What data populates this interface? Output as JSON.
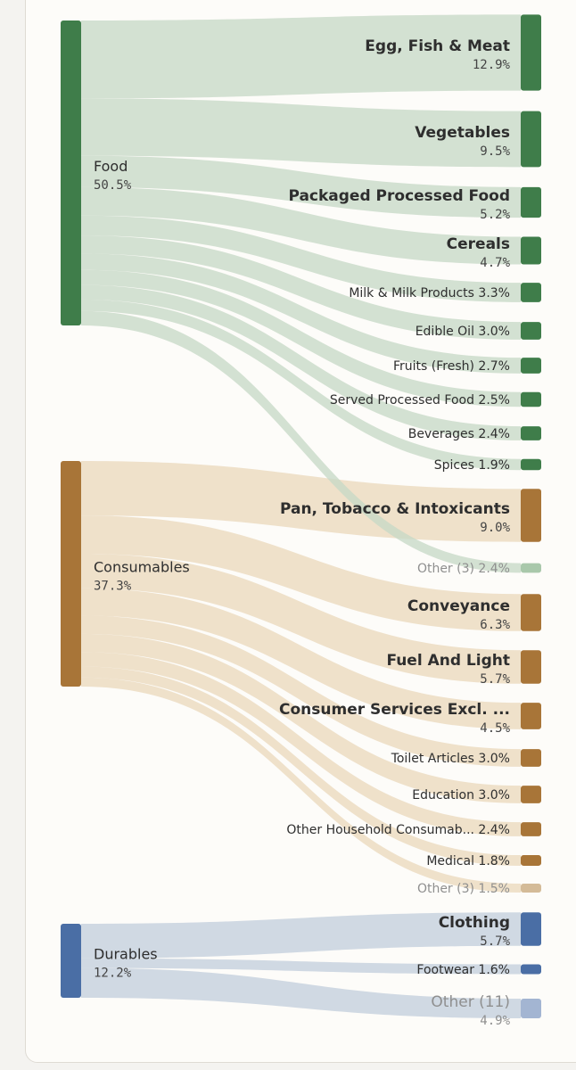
{
  "chart_data": {
    "type": "sankey",
    "value_format": "percent",
    "colors": {
      "Food": "#3f7d4a",
      "Consumables": "#a87538",
      "Durables": "#4a6ea5",
      "Food_link": "#c6d9c7",
      "Consumables_link": "#ead8bc",
      "Durables_link": "#c3cedd",
      "Food_other_node": "#a9c8ab",
      "Consumables_other_node": "#d4bb98",
      "Durables_other_node": "#a3b5d2"
    },
    "sources": [
      {
        "name": "Food",
        "value": "50.5%"
      },
      {
        "name": "Consumables",
        "value": "37.3%"
      },
      {
        "name": "Durables",
        "value": "12.2%"
      }
    ],
    "targets": [
      {
        "name": "Egg, Fish & Meat",
        "value": "12.9%",
        "num": 12.9,
        "source": "Food",
        "style": "large"
      },
      {
        "name": "Vegetables",
        "value": "9.5%",
        "num": 9.5,
        "source": "Food",
        "style": "large"
      },
      {
        "name": "Packaged Processed Food",
        "value": "5.2%",
        "num": 5.2,
        "source": "Food",
        "style": "large"
      },
      {
        "name": "Cereals",
        "value": "4.7%",
        "num": 4.7,
        "source": "Food",
        "style": "large"
      },
      {
        "name": "Milk & Milk Products",
        "value": "3.3%",
        "num": 3.3,
        "source": "Food",
        "style": "small"
      },
      {
        "name": "Edible Oil",
        "value": "3.0%",
        "num": 3.0,
        "source": "Food",
        "style": "small"
      },
      {
        "name": "Fruits (Fresh)",
        "value": "2.7%",
        "num": 2.7,
        "source": "Food",
        "style": "small"
      },
      {
        "name": "Served Processed Food",
        "value": "2.5%",
        "num": 2.5,
        "source": "Food",
        "style": "small"
      },
      {
        "name": "Beverages",
        "value": "2.4%",
        "num": 2.4,
        "source": "Food",
        "style": "small"
      },
      {
        "name": "Spices",
        "value": "1.9%",
        "num": 1.9,
        "source": "Food",
        "style": "small"
      },
      {
        "name": "Pan, Tobacco & Intoxicants",
        "value": "9.0%",
        "num": 9.0,
        "source": "Consumables",
        "style": "large"
      },
      {
        "name": "Other (3)",
        "value": "2.4%",
        "num": 2.4,
        "source": "Food",
        "style": "small-muted"
      },
      {
        "name": "Conveyance",
        "value": "6.3%",
        "num": 6.3,
        "source": "Consumables",
        "style": "large"
      },
      {
        "name": "Fuel And Light",
        "value": "5.7%",
        "num": 5.7,
        "source": "Consumables",
        "style": "large"
      },
      {
        "name": "Consumer Services Excl. ...",
        "value": "4.5%",
        "num": 4.5,
        "source": "Consumables",
        "style": "large"
      },
      {
        "name": "Toilet Articles",
        "value": "3.0%",
        "num": 3.0,
        "source": "Consumables",
        "style": "small"
      },
      {
        "name": "Education",
        "value": "3.0%",
        "num": 3.0,
        "source": "Consumables",
        "style": "small"
      },
      {
        "name": "Other Household Consumab...",
        "value": "2.4%",
        "num": 2.4,
        "source": "Consumables",
        "style": "small"
      },
      {
        "name": "Medical",
        "value": "1.8%",
        "num": 1.8,
        "source": "Consumables",
        "style": "small"
      },
      {
        "name": "Other (3)",
        "value": "1.5%",
        "num": 1.5,
        "source": "Consumables",
        "style": "small-muted"
      },
      {
        "name": "Clothing",
        "value": "5.7%",
        "num": 5.7,
        "source": "Durables",
        "style": "large"
      },
      {
        "name": "Footwear",
        "value": "1.6%",
        "num": 1.6,
        "source": "Durables",
        "style": "small"
      },
      {
        "name": "Other (11)",
        "value": "4.9%",
        "num": 4.9,
        "source": "Durables",
        "style": "large-muted"
      }
    ]
  }
}
